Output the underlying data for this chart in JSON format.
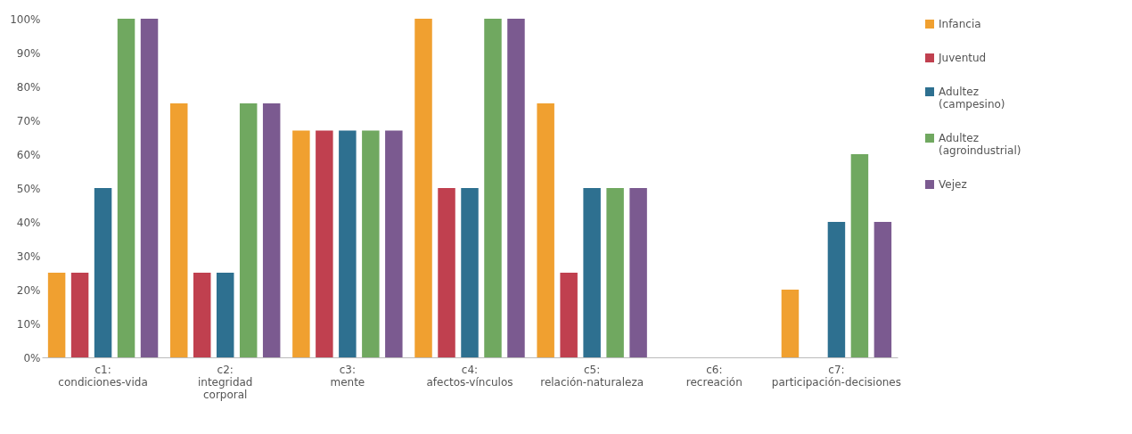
{
  "chart_data": {
    "type": "bar",
    "categories": [
      "c1: condiciones-vida",
      "c2: integridad corporal",
      "c3: mente",
      "c4: afectos-vínculos",
      "c5: relación-naturaleza",
      "c6: recreación",
      "c7: participación-decisiones"
    ],
    "series": [
      {
        "name": "Infancia",
        "color": "#f0a030",
        "values": [
          25,
          75,
          67,
          100,
          75,
          0,
          20
        ]
      },
      {
        "name": "Juventud",
        "color": "#c0404f",
        "values": [
          25,
          25,
          67,
          50,
          25,
          0,
          0
        ]
      },
      {
        "name": "Adultez (campesino)",
        "color": "#2e7090",
        "values": [
          50,
          25,
          67,
          50,
          50,
          0,
          40
        ]
      },
      {
        "name": "Adultez (agroindustrial)",
        "color": "#70a860",
        "values": [
          100,
          75,
          67,
          100,
          50,
          0,
          60
        ]
      },
      {
        "name": "Vejez",
        "color": "#7b5a90",
        "values": [
          100,
          75,
          67,
          100,
          50,
          0,
          40
        ]
      }
    ],
    "ylim": [
      0,
      100
    ],
    "yticks": [
      {
        "value": 0,
        "label": "0%"
      },
      {
        "value": 10,
        "label": "10%"
      },
      {
        "value": 20,
        "label": "20%"
      },
      {
        "value": 30,
        "label": "30%"
      },
      {
        "value": 40,
        "label": "40%"
      },
      {
        "value": 50,
        "label": "50%"
      },
      {
        "value": 60,
        "label": "60%"
      },
      {
        "value": 70,
        "label": "70%"
      },
      {
        "value": 80,
        "label": "80%"
      },
      {
        "value": 90,
        "label": "90%"
      },
      {
        "value": 100,
        "label": "100%"
      }
    ],
    "grid": false,
    "legend": "right"
  }
}
